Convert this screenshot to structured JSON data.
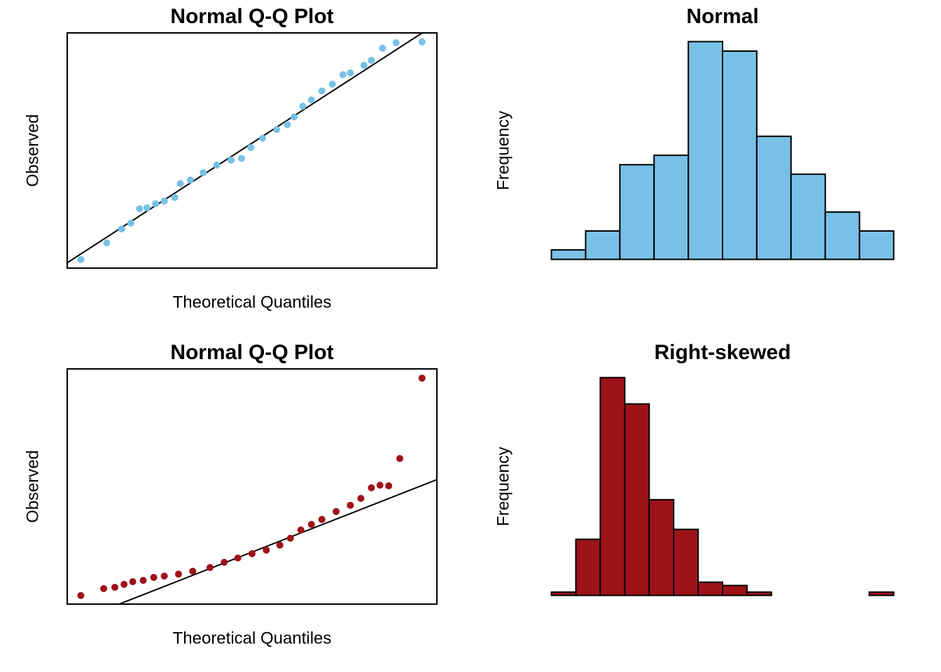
{
  "chart_data": [
    {
      "type": "scatter",
      "title": "Normal Q-Q Plot",
      "x_label": "Theoretical Quantiles",
      "y_label": "Observed",
      "color": "#78c1e6",
      "xlim": [
        -2.99,
        2.99
      ],
      "ylim": [
        -2.64,
        2.59
      ],
      "x": [
        -2.77,
        -2.35,
        -2.11,
        -1.96,
        -1.82,
        -1.7,
        -1.56,
        -1.42,
        -1.25,
        -1.16,
        -1.0,
        -0.79,
        -0.57,
        -0.34,
        -0.17,
        -0.02,
        0.17,
        0.4,
        0.57,
        0.68,
        0.82,
        0.96,
        1.13,
        1.3,
        1.47,
        1.59,
        1.81,
        1.93,
        2.11,
        2.33,
        2.75
      ],
      "y": [
        -2.45,
        -2.08,
        -1.77,
        -1.64,
        -1.32,
        -1.3,
        -1.21,
        -1.15,
        -1.07,
        -0.76,
        -0.68,
        -0.52,
        -0.35,
        -0.24,
        -0.2,
        0.04,
        0.25,
        0.44,
        0.55,
        0.72,
        0.96,
        1.1,
        1.3,
        1.45,
        1.66,
        1.7,
        1.87,
        1.98,
        2.25,
        2.37,
        2.39
      ],
      "qqline": {
        "intercept": 0.14,
        "slope": 0.89
      }
    },
    {
      "type": "histogram",
      "title": "Normal",
      "y_label": "Frequency",
      "color": "#78c1e6",
      "bins": [
        -2.5,
        -2.0,
        -1.5,
        -1.0,
        -0.5,
        0,
        0.5,
        1.0,
        1.5,
        2.0,
        2.5
      ],
      "values": [
        2,
        6,
        20,
        22,
        46,
        44,
        26,
        18,
        10,
        6
      ],
      "xlim": [
        -2.7,
        2.7
      ],
      "ylim": [
        -1.84,
        47.84
      ]
    },
    {
      "type": "scatter",
      "title": "Normal Q-Q Plot",
      "x_label": "Theoretical Quantiles",
      "y_label": "Observed",
      "color": "#9e1219",
      "xlim": [
        -2.99,
        2.99
      ],
      "ylim": [
        -0.04,
        7.1
      ],
      "x": [
        -2.77,
        -2.4,
        -2.22,
        -2.07,
        -1.93,
        -1.76,
        -1.59,
        -1.42,
        -1.19,
        -0.96,
        -0.68,
        -0.45,
        -0.23,
        0.0,
        0.23,
        0.45,
        0.62,
        0.79,
        0.96,
        1.13,
        1.36,
        1.59,
        1.76,
        1.93,
        2.07,
        2.21,
        2.39,
        2.75
      ],
      "y": [
        0.22,
        0.43,
        0.47,
        0.56,
        0.64,
        0.68,
        0.77,
        0.81,
        0.87,
        0.96,
        1.07,
        1.23,
        1.36,
        1.49,
        1.6,
        1.75,
        1.96,
        2.21,
        2.38,
        2.53,
        2.77,
        2.96,
        3.17,
        3.49,
        3.57,
        3.55,
        4.38,
        6.82
      ],
      "qqline": {
        "intercept": 1.54,
        "slope": 0.735
      }
    },
    {
      "type": "histogram",
      "title": "Right-skewed",
      "y_label": "Frequency",
      "color": "#9e1219",
      "bins": [
        0,
        0.5,
        1.0,
        1.5,
        2.0,
        2.5,
        3.0,
        3.5,
        4.0,
        4.5,
        5.0,
        5.5,
        6.0,
        6.5,
        7.0
      ],
      "values": [
        1,
        17,
        66,
        58,
        29,
        20,
        4,
        3,
        1,
        0,
        0,
        0,
        0,
        1
      ],
      "xlim": [
        -0.28,
        7.28
      ],
      "ylim": [
        -2.64,
        68.64
      ]
    }
  ]
}
